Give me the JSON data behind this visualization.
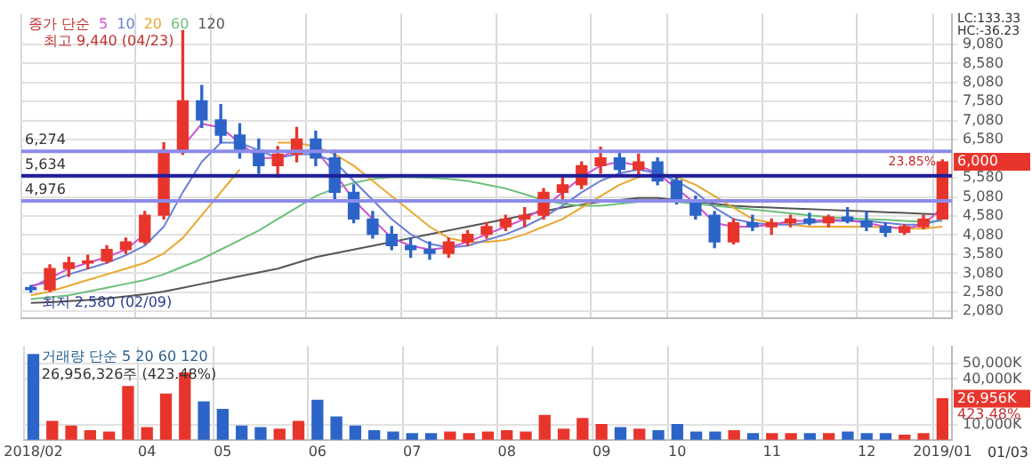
{
  "chart_data": [
    {
      "type": "candlestick",
      "legend_title": "종가 단순",
      "legend": "top left",
      "grid": true,
      "tick_labels": "y",
      "categories": [
        "2018/02",
        null,
        null,
        null,
        null,
        null,
        "04",
        null,
        null,
        null,
        "05",
        null,
        null,
        null,
        null,
        "06",
        null,
        null,
        null,
        null,
        "07",
        null,
        null,
        null,
        null,
        "08",
        null,
        null,
        null,
        null,
        "09",
        null,
        null,
        null,
        "10",
        null,
        null,
        null,
        null,
        "11",
        null,
        null,
        null,
        null,
        "12",
        null,
        null,
        null,
        "2019/01"
      ],
      "ohlc": [
        [
          2700,
          2750,
          2580,
          2650
        ],
        [
          2650,
          3300,
          2600,
          3200
        ],
        [
          3200,
          3500,
          3000,
          3350
        ],
        [
          3350,
          3550,
          3200,
          3400
        ],
        [
          3400,
          3800,
          3350,
          3700
        ],
        [
          3700,
          4000,
          3600,
          3900
        ],
        [
          3900,
          4700,
          3850,
          4600
        ],
        [
          4600,
          6500,
          4500,
          6300
        ],
        [
          6300,
          9440,
          6200,
          7600
        ],
        [
          7600,
          8000,
          6900,
          7100
        ],
        [
          7100,
          7500,
          6500,
          6700
        ],
        [
          6700,
          7000,
          6100,
          6300
        ],
        [
          6300,
          6600,
          5700,
          5900
        ],
        [
          5900,
          6400,
          5600,
          6200
        ],
        [
          6200,
          6900,
          6000,
          6600
        ],
        [
          6600,
          6800,
          5900,
          6100
        ],
        [
          6100,
          6300,
          5000,
          5200
        ],
        [
          5200,
          5400,
          4400,
          4500
        ],
        [
          4500,
          4700,
          4000,
          4100
        ],
        [
          4100,
          4300,
          3700,
          3800
        ],
        [
          3800,
          4000,
          3500,
          3700
        ],
        [
          3700,
          3900,
          3450,
          3600
        ],
        [
          3600,
          4000,
          3500,
          3900
        ],
        [
          3900,
          4200,
          3800,
          4100
        ],
        [
          4100,
          4400,
          4000,
          4300
        ],
        [
          4300,
          4600,
          4200,
          4500
        ],
        [
          4500,
          4800,
          4300,
          4600
        ],
        [
          4600,
          5300,
          4500,
          5200
        ],
        [
          5200,
          5600,
          5000,
          5400
        ],
        [
          5400,
          6000,
          5300,
          5900
        ],
        [
          5900,
          6380,
          5700,
          6100
        ],
        [
          6100,
          6250,
          5700,
          5800
        ],
        [
          5800,
          6200,
          5600,
          6000
        ],
        [
          6000,
          6100,
          5400,
          5500
        ],
        [
          5500,
          5600,
          4900,
          5000
        ],
        [
          5000,
          5100,
          4500,
          4600
        ],
        [
          4600,
          4700,
          3750,
          3900
        ],
        [
          3900,
          4500,
          3850,
          4400
        ],
        [
          4400,
          4600,
          4200,
          4300
        ],
        [
          4300,
          4500,
          4100,
          4400
        ],
        [
          4400,
          4600,
          4300,
          4500
        ],
        [
          4500,
          4650,
          4350,
          4400
        ],
        [
          4400,
          4600,
          4300,
          4550
        ],
        [
          4550,
          4800,
          4400,
          4450
        ],
        [
          4450,
          4700,
          4200,
          4300
        ],
        [
          4300,
          4400,
          4050,
          4150
        ],
        [
          4150,
          4350,
          4100,
          4300
        ],
        [
          4300,
          4600,
          4250,
          4500
        ],
        [
          4500,
          6050,
          4500,
          6000
        ]
      ],
      "colors": [
        "#2c64c8",
        "#e8352c",
        "#e8352c",
        "#e8352c",
        "#e8352c",
        "#e8352c",
        "#e8352c",
        "#e8352c",
        "#e8352c",
        "#2c64c8",
        "#2c64c8",
        "#2c64c8",
        "#2c64c8",
        "#e8352c",
        "#e8352c",
        "#2c64c8",
        "#2c64c8",
        "#2c64c8",
        "#2c64c8",
        "#2c64c8",
        "#2c64c8",
        "#2c64c8",
        "#e8352c",
        "#e8352c",
        "#e8352c",
        "#e8352c",
        "#e8352c",
        "#e8352c",
        "#e8352c",
        "#e8352c",
        "#e8352c",
        "#2c64c8",
        "#e8352c",
        "#2c64c8",
        "#2c64c8",
        "#2c64c8",
        "#2c64c8",
        "#e8352c",
        "#2c64c8",
        "#e8352c",
        "#e8352c",
        "#2c64c8",
        "#e8352c",
        "#2c64c8",
        "#2c64c8",
        "#2c64c8",
        "#e8352c",
        "#e8352c",
        "#e8352c"
      ],
      "series": [
        {
          "name": "5",
          "type": "line",
          "color": "#d050d0",
          "values": [
            2700,
            2950,
            3200,
            3350,
            3500,
            3700,
            4100,
            null,
            6400,
            7000,
            6900,
            6500,
            6100,
            6100,
            6300,
            6300,
            5700,
            5000,
            4500,
            4000,
            3800,
            3700,
            3750,
            3900,
            4100,
            4300,
            4500,
            4800,
            5200,
            5600,
            5900,
            6000,
            5900,
            5700,
            5300,
            4900,
            4400,
            4300,
            4300,
            4350,
            4450,
            4450,
            4480,
            4470,
            4400,
            4300,
            4250,
            4350,
            4800
          ]
        },
        {
          "name": "10",
          "type": "line",
          "color": "#6a7fd8",
          "values": [
            2750,
            2850,
            3050,
            3200,
            3350,
            3550,
            3800,
            4300,
            5200,
            6000,
            6500,
            6500,
            6300,
            6100,
            6200,
            6200,
            6000,
            5500,
            5000,
            4500,
            4100,
            3850,
            3750,
            3800,
            3950,
            4100,
            4300,
            4550,
            4850,
            5200,
            5500,
            5700,
            5800,
            5700,
            5500,
            5200,
            4800,
            4500,
            4400,
            4350,
            4350,
            4400,
            4450,
            4450,
            4450,
            4400,
            4350,
            4350,
            4500
          ]
        },
        {
          "name": "20",
          "type": "line",
          "color": "#e8a830",
          "values": [
            2500,
            2600,
            2750,
            2900,
            3050,
            3200,
            3350,
            3600,
            4000,
            4600,
            5200,
            5800,
            null,
            6500,
            6500,
            6400,
            6200,
            5900,
            5500,
            5100,
            4700,
            4300,
            4000,
            3900,
            3900,
            3950,
            4100,
            4300,
            4500,
            4800,
            5100,
            5400,
            5600,
            5700,
            5600,
            5400,
            5100,
            4800,
            4500,
            4400,
            4350,
            4300,
            4300,
            4300,
            4300,
            4280,
            4250,
            4250,
            4300
          ]
        },
        {
          "name": "60",
          "type": "line",
          "color": "#6cc07a",
          "values": [
            2400,
            2450,
            2500,
            2600,
            2700,
            2800,
            2900,
            3050,
            3250,
            3450,
            3700,
            3950,
            4200,
            4500,
            4800,
            5100,
            5300,
            5450,
            5550,
            5600,
            5600,
            5580,
            5550,
            5500,
            5400,
            5300,
            5150,
            5000,
            4900,
            4850,
            4850,
            4900,
            4950,
            5000,
            4950,
            4900,
            4850,
            4800,
            4750,
            4700,
            4650,
            4600,
            4550,
            4520,
            4500,
            4480,
            4450,
            4430,
            4450
          ]
        },
        {
          "name": "120",
          "type": "line",
          "color": "#555555",
          "values": [
            2300,
            2320,
            2350,
            2380,
            2420,
            2470,
            2530,
            2600,
            2700,
            2800,
            2900,
            3000,
            3100,
            3200,
            3350,
            3500,
            3600,
            3700,
            3800,
            3900,
            4000,
            4100,
            4200,
            4300,
            4400,
            4500,
            4600,
            4700,
            4800,
            4880,
            4950,
            5000,
            5050,
            5050,
            5000,
            4950,
            4900,
            4850,
            4820,
            4800,
            4780,
            4760,
            4740,
            4720,
            4700,
            4680,
            4660,
            4640,
            4620
          ]
        }
      ],
      "ylim": [
        1890,
        9880
      ],
      "yticks": [
        {
          "value": 2080,
          "label": "2,080"
        },
        {
          "value": 2580,
          "label": "2,580"
        },
        {
          "value": 3080,
          "label": "3,080"
        },
        {
          "value": 3580,
          "label": "3,580"
        },
        {
          "value": 4080,
          "label": "4,080"
        },
        {
          "value": 4580,
          "label": "4,580"
        },
        {
          "value": 5080,
          "label": "5,080"
        },
        {
          "value": 5580,
          "label": "5,580"
        },
        {
          "value": 6580,
          "label": "6,580"
        },
        {
          "value": 7080,
          "label": "7,080"
        },
        {
          "value": 7580,
          "label": "7,580"
        },
        {
          "value": 8080,
          "label": "8,080"
        },
        {
          "value": 8580,
          "label": "8,580"
        },
        {
          "value": 9080,
          "label": "9,080"
        }
      ],
      "ref_lines": [
        {
          "axis": "y",
          "value": 6274,
          "label": "6,274",
          "color": "#8c8cec"
        },
        {
          "axis": "y",
          "value": 5634,
          "label": "5,634",
          "color": "#1e1e9a"
        },
        {
          "axis": "y",
          "value": 4976,
          "label": "4,976",
          "color": "#8c8cec"
        }
      ],
      "annotations": [
        "LC:133.33",
        "HC:-36.23",
        "6,000",
        "23.85%",
        "최고 9,440 (04/23)",
        "최저 2,580 (02/09)"
      ]
    },
    {
      "type": "bar",
      "title": "거래량 단순 5 20 60 120",
      "subtitle": "26,956,326주 (423.48%)",
      "grid": true,
      "categories": [
        "2018/02",
        null,
        null,
        null,
        null,
        null,
        "04",
        null,
        null,
        null,
        "05",
        null,
        null,
        null,
        null,
        "06",
        null,
        null,
        null,
        null,
        "07",
        null,
        null,
        null,
        null,
        "08",
        null,
        null,
        null,
        null,
        "09",
        null,
        null,
        null,
        "10",
        null,
        null,
        null,
        null,
        "11",
        null,
        null,
        null,
        null,
        "12",
        null,
        null,
        null,
        "2019/01"
      ],
      "values": [
        56000,
        12000,
        9000,
        6000,
        5000,
        35000,
        8000,
        30000,
        44000,
        25000,
        20000,
        9000,
        8000,
        7000,
        12000,
        26000,
        15000,
        9000,
        6000,
        5000,
        4000,
        4000,
        5000,
        4000,
        5000,
        6000,
        5000,
        16000,
        7000,
        14000,
        10000,
        8000,
        7000,
        6000,
        10000,
        5000,
        5000,
        6000,
        4000,
        4000,
        4000,
        4000,
        4000,
        5000,
        4000,
        4000,
        3000,
        4000,
        27000
      ],
      "colors": [
        "#2c64c8",
        "#e8352c",
        "#e8352c",
        "#e8352c",
        "#e8352c",
        "#e8352c",
        "#e8352c",
        "#e8352c",
        "#e8352c",
        "#2c64c8",
        "#2c64c8",
        "#2c64c8",
        "#2c64c8",
        "#e8352c",
        "#e8352c",
        "#2c64c8",
        "#2c64c8",
        "#2c64c8",
        "#2c64c8",
        "#2c64c8",
        "#2c64c8",
        "#2c64c8",
        "#e8352c",
        "#e8352c",
        "#e8352c",
        "#e8352c",
        "#e8352c",
        "#e8352c",
        "#e8352c",
        "#e8352c",
        "#e8352c",
        "#2c64c8",
        "#e8352c",
        "#2c64c8",
        "#2c64c8",
        "#2c64c8",
        "#2c64c8",
        "#e8352c",
        "#2c64c8",
        "#e8352c",
        "#e8352c",
        "#2c64c8",
        "#e8352c",
        "#2c64c8",
        "#2c64c8",
        "#2c64c8",
        "#e8352c",
        "#e8352c",
        "#e8352c"
      ],
      "ylim": [
        0,
        61500
      ],
      "yticks": [
        {
          "value": 10000,
          "label": "10,000K"
        },
        {
          "value": 40000,
          "label": "40,000K"
        },
        {
          "value": 50000,
          "label": "50,000K"
        }
      ],
      "annotations": [
        "01/03",
        "26,956K",
        "423.48%"
      ]
    }
  ]
}
